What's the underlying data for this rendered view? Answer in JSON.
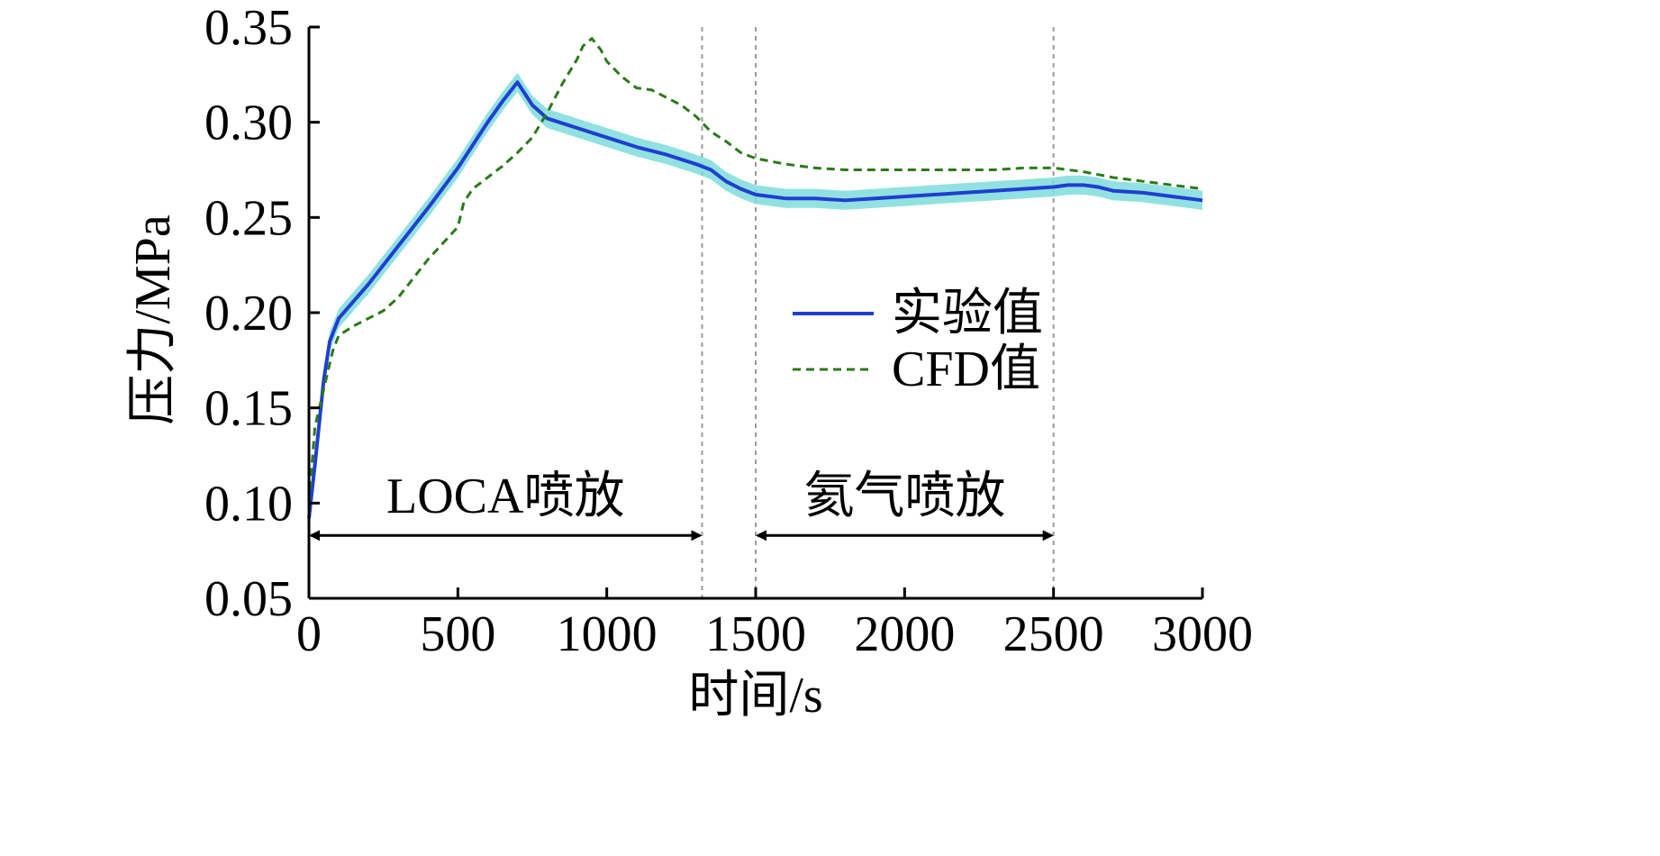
{
  "chart_data": {
    "type": "line",
    "xlabel": "时间/s",
    "ylabel": "压力/MPa",
    "xlim": [
      0,
      3000
    ],
    "ylim": [
      0.05,
      0.35
    ],
    "xticks": [
      "0",
      "500",
      "1000",
      "1500",
      "2000",
      "2500",
      "3000"
    ],
    "yticks": [
      "0.05",
      "0.10",
      "0.15",
      "0.20",
      "0.25",
      "0.30",
      "0.35"
    ],
    "grid": false,
    "legend_position": "center-right",
    "series": [
      {
        "name": "实验值",
        "style": "solid",
        "color": "#1f3fd1",
        "band_color": "#7fdcdc",
        "band_halfwidth": 0.005,
        "x": [
          0,
          20,
          50,
          70,
          100,
          150,
          200,
          300,
          400,
          500,
          600,
          650,
          700,
          750,
          800,
          900,
          1000,
          1100,
          1200,
          1300,
          1350,
          1400,
          1450,
          1500,
          1600,
          1700,
          1800,
          1900,
          2000,
          2100,
          2200,
          2300,
          2400,
          2500,
          2550,
          2600,
          2650,
          2700,
          2800,
          2900,
          3000
        ],
        "y": [
          0.092,
          0.12,
          0.165,
          0.185,
          0.197,
          0.206,
          0.215,
          0.235,
          0.255,
          0.276,
          0.3,
          0.311,
          0.321,
          0.309,
          0.302,
          0.297,
          0.292,
          0.287,
          0.283,
          0.278,
          0.275,
          0.269,
          0.265,
          0.262,
          0.26,
          0.26,
          0.259,
          0.26,
          0.261,
          0.262,
          0.263,
          0.264,
          0.265,
          0.266,
          0.267,
          0.267,
          0.266,
          0.264,
          0.263,
          0.261,
          0.259
        ]
      },
      {
        "name": "CFD值",
        "style": "dashed",
        "color": "#2a7a18",
        "x": [
          0,
          20,
          50,
          80,
          100,
          150,
          200,
          250,
          300,
          400,
          500,
          520,
          550,
          600,
          650,
          700,
          750,
          800,
          850,
          900,
          920,
          950,
          980,
          1000,
          1050,
          1100,
          1150,
          1200,
          1250,
          1300,
          1350,
          1400,
          1450,
          1500,
          1600,
          1700,
          1800,
          1900,
          2000,
          2100,
          2200,
          2300,
          2400,
          2500,
          2600,
          2700,
          2800,
          2900,
          3000
        ],
        "y": [
          0.1,
          0.14,
          0.16,
          0.18,
          0.188,
          0.193,
          0.197,
          0.201,
          0.208,
          0.228,
          0.245,
          0.258,
          0.265,
          0.271,
          0.277,
          0.284,
          0.292,
          0.305,
          0.32,
          0.333,
          0.34,
          0.344,
          0.338,
          0.332,
          0.324,
          0.318,
          0.317,
          0.313,
          0.309,
          0.303,
          0.295,
          0.29,
          0.284,
          0.281,
          0.278,
          0.276,
          0.275,
          0.275,
          0.275,
          0.275,
          0.275,
          0.275,
          0.276,
          0.276,
          0.274,
          0.271,
          0.269,
          0.267,
          0.265
        ]
      }
    ],
    "vlines": [
      1320,
      1500,
      2500
    ],
    "annotations": [
      {
        "text": "LOCA喷放",
        "x_start": 0,
        "x_end": 1320,
        "label_y": 0.104,
        "arrow_y": 0.083
      },
      {
        "text": "氦气喷放",
        "x_start": 1500,
        "x_end": 2500,
        "label_y": 0.104,
        "arrow_y": 0.083
      }
    ]
  }
}
